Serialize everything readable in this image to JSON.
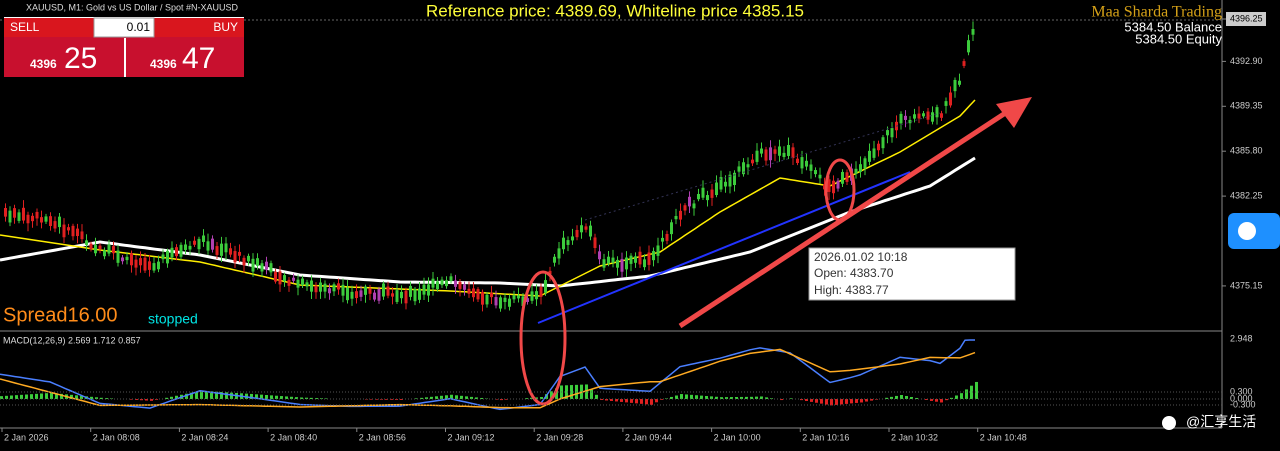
{
  "header": {
    "symbol": "XAUUSD, M1: Gold vs US Dollar / Spot #N-XAUUSD",
    "reference": "Reference price: 4389.69, Whiteline price 4385.15",
    "brand": "Maa Sharda Trading",
    "balance": "5384.50 Balance",
    "equity": "5384.50 Equity"
  },
  "trade_panel": {
    "sell": "SELL",
    "buy": "BUY",
    "lot": "0.01",
    "sell_prefix": "4396",
    "sell_big": "25",
    "buy_prefix": "4396",
    "buy_big": "47"
  },
  "price_axis": [
    "4396.25",
    "4392.90",
    "4389.35",
    "4385.80",
    "4382.25",
    "4375.15"
  ],
  "tooltip": {
    "time": "2026.01.02 10:18",
    "open": "Open: 4383.70",
    "high": "High: 4383.77"
  },
  "status": {
    "spread": "Spread16.00",
    "state": "stopped"
  },
  "macd": {
    "label": "MACD(12,26,9) 2.569 1.712 0.857",
    "axis": [
      "2.948",
      "0.300",
      "0.000",
      "-0.300"
    ]
  },
  "time_axis": [
    "2 Jan 2026",
    "2 Jan 08:08",
    "2 Jan 08:24",
    "2 Jan 08:40",
    "2 Jan 08:56",
    "2 Jan 09:12",
    "2 Jan 09:28",
    "2 Jan 09:44",
    "2 Jan 10:00",
    "2 Jan 10:16",
    "2 Jan 10:32",
    "2 Jan 10:48"
  ],
  "watermark": "@汇享生活"
}
